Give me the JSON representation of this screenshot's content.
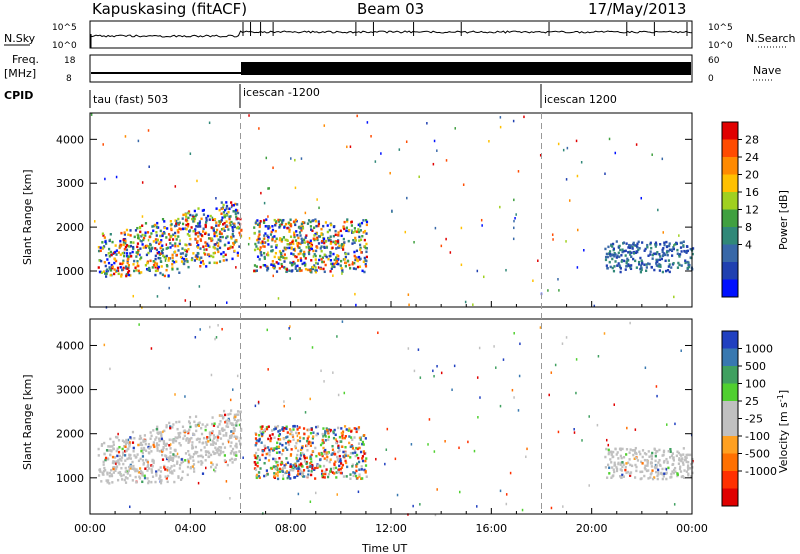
{
  "header": {
    "station": "Kapuskasing (fitACF)",
    "beam": "Beam 03",
    "date": "17/May/2013"
  },
  "nsky_panel": {
    "left_label": "N.Sky",
    "left_ticks": [
      "10^5",
      "10^0"
    ],
    "right_label": "N.Search",
    "right_ticks": [
      "10^5",
      "10^0"
    ]
  },
  "freq_panel": {
    "left_label_1": "Freq.",
    "left_label_2": "[MHz]",
    "left_ticks": [
      "18",
      "8"
    ],
    "right_label": "Nave",
    "right_ticks": [
      "60",
      "0"
    ]
  },
  "cpid_panel": {
    "label": "CPID",
    "segments": [
      {
        "label": "tau (fast) 503",
        "start_hour": 0
      },
      {
        "label": "icescan -1200",
        "start_hour": 6
      },
      {
        "label": "icescan 1200",
        "start_hour": 18
      }
    ]
  },
  "power_colorbar": {
    "label": "Power [dB]",
    "ticks": [
      "28",
      "24",
      "20",
      "16",
      "12",
      "8",
      "4"
    ],
    "colors": [
      "#e00000",
      "#ff4b00",
      "#ff8a00",
      "#ffc000",
      "#a0d020",
      "#40a040",
      "#308878",
      "#3868a8",
      "#2040b0",
      "#0010ff"
    ]
  },
  "velocity_colorbar": {
    "label": "Velocity [m s",
    "label_sup": "-1",
    "label_end": "]",
    "ticks": [
      "1000",
      "500",
      "100",
      "25",
      "-25",
      "-100",
      "-500",
      "-1000"
    ],
    "colors": [
      "#2040c0",
      "#3878b0",
      "#40a060",
      "#50d030",
      "#c0c0c0",
      "#c0c0c0",
      "#ffa020",
      "#ff7000",
      "#ff3000",
      "#e00000"
    ]
  },
  "chart_data": {
    "type": "heatmap",
    "xlabel": "Time UT",
    "ylabel": "Slant Range [km]",
    "x_ticks": [
      "00:00",
      "04:00",
      "08:00",
      "12:00",
      "16:00",
      "20:00",
      "00:00"
    ],
    "y_ticks": [
      "1000",
      "2000",
      "3000",
      "4000"
    ],
    "xlim_hours": [
      0,
      24
    ],
    "ylim_km": [
      180,
      4600
    ],
    "cpid_boundaries_hours": [
      6,
      18
    ],
    "power_regions": [
      {
        "t0": 0.3,
        "t1": 6.0,
        "r0": 900,
        "r1": 2600,
        "level": "mixed"
      },
      {
        "t0": 6.5,
        "t1": 11.0,
        "r0": 1000,
        "r1": 2200,
        "level": "mixed"
      },
      {
        "t0": 20.5,
        "t1": 24.0,
        "r0": 1000,
        "r1": 1700,
        "level": "low"
      }
    ],
    "velocity_regions": [
      {
        "t0": 0.3,
        "t1": 6.0,
        "r0": 900,
        "r1": 2600,
        "level": "near-zero"
      },
      {
        "t0": 6.5,
        "t1": 11.0,
        "r0": 1000,
        "r1": 2200,
        "level": "mixed"
      },
      {
        "t0": 20.5,
        "t1": 24.0,
        "r0": 1000,
        "r1": 1700,
        "level": "near-zero"
      }
    ]
  }
}
